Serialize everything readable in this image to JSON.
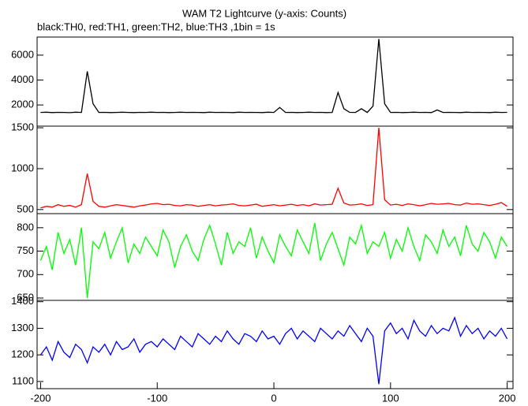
{
  "title": "WAM T2 Lightcurve (y-axis: Counts)",
  "subtitle": "black:TH0, red:TH1, green:TH2, blue:TH3 ,1bin = 1s",
  "chart_data": [
    {
      "type": "line",
      "color": "#000000",
      "xlim": [
        -203,
        205
      ],
      "ylim": [
        300,
        7450
      ],
      "yticks": [
        2000,
        4000,
        6000
      ],
      "x": [
        -200,
        -195,
        -190,
        -185,
        -180,
        -175,
        -170,
        -165,
        -160,
        -155,
        -150,
        -145,
        -140,
        -135,
        -130,
        -125,
        -120,
        -115,
        -110,
        -105,
        -100,
        -95,
        -90,
        -85,
        -80,
        -75,
        -70,
        -65,
        -60,
        -55,
        -50,
        -45,
        -40,
        -35,
        -30,
        -25,
        -20,
        -15,
        -10,
        -5,
        0,
        5,
        10,
        15,
        20,
        25,
        30,
        35,
        40,
        45,
        50,
        55,
        60,
        65,
        70,
        75,
        80,
        85,
        90,
        95,
        100,
        105,
        110,
        115,
        120,
        125,
        130,
        135,
        140,
        145,
        150,
        155,
        160,
        165,
        170,
        175,
        180,
        185,
        190,
        195,
        200
      ],
      "values": [
        1400,
        1420,
        1390,
        1410,
        1400,
        1380,
        1420,
        1400,
        4700,
        2100,
        1400,
        1410,
        1390,
        1400,
        1420,
        1400,
        1390,
        1410,
        1400,
        1420,
        1400,
        1410,
        1390,
        1400,
        1420,
        1400,
        1410,
        1400,
        1390,
        1420,
        1400,
        1410,
        1400,
        1390,
        1420,
        1400,
        1410,
        1400,
        1390,
        1420,
        1400,
        1800,
        1400,
        1410,
        1390,
        1400,
        1420,
        1400,
        1410,
        1390,
        1400,
        3000,
        1700,
        1410,
        1400,
        1700,
        1400,
        1900,
        7300,
        2100,
        1400,
        1410,
        1390,
        1400,
        1420,
        1400,
        1410,
        1390,
        1600,
        1400,
        1410,
        1400,
        1390,
        1420,
        1400,
        1410,
        1400,
        1390,
        1420,
        1400,
        1410
      ]
    },
    {
      "type": "line",
      "color": "#ff0000",
      "xlim": [
        -203,
        205
      ],
      "ylim": [
        450,
        1520
      ],
      "yticks": [
        500,
        1000,
        1500
      ],
      "x": [
        -200,
        -195,
        -190,
        -185,
        -180,
        -175,
        -170,
        -165,
        -160,
        -155,
        -150,
        -145,
        -140,
        -135,
        -130,
        -125,
        -120,
        -115,
        -110,
        -105,
        -100,
        -95,
        -90,
        -85,
        -80,
        -75,
        -70,
        -65,
        -60,
        -55,
        -50,
        -45,
        -40,
        -35,
        -30,
        -25,
        -20,
        -15,
        -10,
        -5,
        0,
        5,
        10,
        15,
        20,
        25,
        30,
        35,
        40,
        45,
        50,
        55,
        60,
        65,
        70,
        75,
        80,
        85,
        90,
        95,
        100,
        105,
        110,
        115,
        120,
        125,
        130,
        135,
        140,
        145,
        150,
        155,
        160,
        165,
        170,
        175,
        180,
        185,
        190,
        195,
        200
      ],
      "values": [
        520,
        540,
        530,
        560,
        540,
        550,
        530,
        560,
        940,
        600,
        540,
        530,
        545,
        560,
        550,
        540,
        530,
        545,
        555,
        570,
        575,
        560,
        565,
        550,
        545,
        560,
        555,
        540,
        550,
        560,
        545,
        555,
        560,
        570,
        550,
        545,
        555,
        565,
        540,
        550,
        560,
        545,
        555,
        565,
        550,
        560,
        545,
        570,
        555,
        560,
        565,
        760,
        580,
        555,
        560,
        570,
        550,
        560,
        1500,
        620,
        555,
        565,
        550,
        570,
        560,
        545,
        560,
        575,
        565,
        570,
        575,
        560,
        555,
        580,
        565,
        570,
        560,
        550,
        565,
        585,
        540
      ]
    },
    {
      "type": "line",
      "color": "#00ff00",
      "xlim": [
        -203,
        205
      ],
      "ylim": [
        645,
        830
      ],
      "yticks": [
        650,
        700,
        750,
        800
      ],
      "x": [
        -200,
        -195,
        -190,
        -185,
        -180,
        -175,
        -170,
        -165,
        -160,
        -155,
        -150,
        -145,
        -140,
        -135,
        -130,
        -125,
        -120,
        -115,
        -110,
        -105,
        -100,
        -95,
        -90,
        -85,
        -80,
        -75,
        -70,
        -65,
        -60,
        -55,
        -50,
        -45,
        -40,
        -35,
        -30,
        -25,
        -20,
        -15,
        -10,
        -5,
        0,
        5,
        10,
        15,
        20,
        25,
        30,
        35,
        40,
        45,
        50,
        55,
        60,
        65,
        70,
        75,
        80,
        85,
        90,
        95,
        100,
        105,
        110,
        115,
        120,
        125,
        130,
        135,
        140,
        145,
        150,
        155,
        160,
        165,
        170,
        175,
        180,
        185,
        190,
        195,
        200
      ],
      "values": [
        730,
        760,
        710,
        790,
        745,
        775,
        720,
        800,
        650,
        770,
        755,
        790,
        735,
        770,
        800,
        725,
        765,
        745,
        780,
        760,
        740,
        795,
        770,
        715,
        760,
        785,
        750,
        730,
        775,
        805,
        765,
        720,
        790,
        745,
        770,
        760,
        800,
        735,
        780,
        750,
        725,
        785,
        760,
        740,
        795,
        770,
        745,
        810,
        730,
        765,
        790,
        755,
        720,
        780,
        765,
        805,
        745,
        770,
        760,
        790,
        735,
        775,
        750,
        800,
        760,
        730,
        785,
        770,
        745,
        795,
        760,
        780,
        740,
        805,
        765,
        750,
        790,
        770,
        735,
        780,
        760
      ]
    },
    {
      "type": "line",
      "color": "#0000ff",
      "xlim": [
        -203,
        205
      ],
      "ylim": [
        1073,
        1405
      ],
      "yticks": [
        1100,
        1200,
        1300,
        1400
      ],
      "xticks": [
        -200,
        -100,
        0,
        100,
        200
      ],
      "x": [
        -200,
        -195,
        -190,
        -185,
        -180,
        -175,
        -170,
        -165,
        -160,
        -155,
        -150,
        -145,
        -140,
        -135,
        -130,
        -125,
        -120,
        -115,
        -110,
        -105,
        -100,
        -95,
        -90,
        -85,
        -80,
        -75,
        -70,
        -65,
        -60,
        -55,
        -50,
        -45,
        -40,
        -35,
        -30,
        -25,
        -20,
        -15,
        -10,
        -5,
        0,
        5,
        10,
        15,
        20,
        25,
        30,
        35,
        40,
        45,
        50,
        55,
        60,
        65,
        70,
        75,
        80,
        85,
        90,
        95,
        100,
        105,
        110,
        115,
        120,
        125,
        130,
        135,
        140,
        145,
        150,
        155,
        160,
        165,
        170,
        175,
        180,
        185,
        190,
        195,
        200
      ],
      "values": [
        1200,
        1230,
        1180,
        1250,
        1210,
        1190,
        1240,
        1220,
        1170,
        1230,
        1210,
        1240,
        1200,
        1250,
        1220,
        1230,
        1260,
        1210,
        1240,
        1250,
        1230,
        1260,
        1240,
        1220,
        1270,
        1250,
        1230,
        1280,
        1260,
        1240,
        1270,
        1250,
        1290,
        1260,
        1240,
        1280,
        1270,
        1250,
        1290,
        1260,
        1270,
        1240,
        1280,
        1300,
        1260,
        1290,
        1270,
        1250,
        1300,
        1280,
        1260,
        1290,
        1270,
        1310,
        1280,
        1250,
        1300,
        1270,
        1090,
        1290,
        1320,
        1280,
        1300,
        1260,
        1330,
        1290,
        1270,
        1310,
        1280,
        1300,
        1290,
        1340,
        1270,
        1310,
        1280,
        1300,
        1260,
        1290,
        1270,
        1300,
        1260
      ]
    }
  ]
}
